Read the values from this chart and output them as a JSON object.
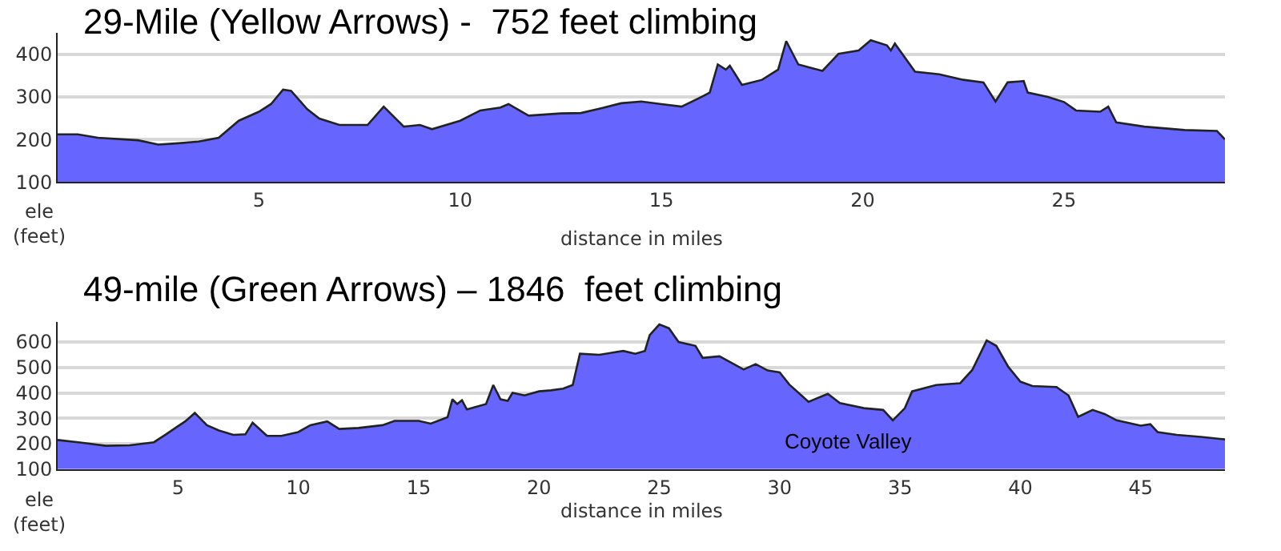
{
  "chart_data": [
    {
      "type": "area",
      "title": "29-Mile (Yellow Arrows) -  752 feet climbing",
      "xlabel": "distance in miles",
      "ylabel": "ele\n(feet)",
      "x": [
        0,
        0.5,
        1,
        2,
        2.5,
        3,
        3.5,
        4,
        4.5,
        5,
        5.3,
        5.6,
        5.8,
        6.2,
        6.5,
        7,
        7.7,
        8.1,
        8.6,
        9,
        9.3,
        10,
        10.5,
        11,
        11.2,
        11.7,
        12.5,
        13,
        13.5,
        14,
        14.5,
        15,
        15.5,
        16,
        16.2,
        16.4,
        16.6,
        16.7,
        17,
        17.5,
        17.9,
        18.1,
        18.4,
        19,
        19.4,
        19.9,
        20.2,
        20.6,
        20.7,
        20.8,
        21.3,
        21.9,
        22.5,
        23,
        23.3,
        23.6,
        24,
        24.1,
        24.6,
        25,
        25.3,
        25.9,
        26.1,
        26.3,
        27,
        28,
        28.8,
        29
      ],
      "series": [
        {
          "color": "#6666ff",
          "values": [
            212,
            212,
            204,
            198,
            188,
            191,
            195,
            204,
            244,
            265,
            283,
            317,
            314,
            271,
            249,
            234,
            234,
            277,
            230,
            234,
            224,
            244,
            268,
            275,
            283,
            256,
            261,
            262,
            273,
            285,
            289,
            283,
            277,
            300,
            310,
            376,
            364,
            373,
            328,
            340,
            364,
            431,
            376,
            361,
            401,
            409,
            433,
            421,
            409,
            425,
            359,
            353,
            340,
            334,
            289,
            334,
            337,
            310,
            300,
            288,
            268,
            265,
            277,
            240,
            230,
            222,
            220,
            200
          ]
        }
      ],
      "xlim": [
        0,
        29
      ],
      "ylim": [
        100,
        450
      ],
      "xticks": [
        5,
        10,
        15,
        20,
        25
      ],
      "yticks": [
        100,
        200,
        300,
        400
      ],
      "grid": "y"
    },
    {
      "type": "area",
      "title": "49-mile (Green Arrows) – 1846  feet climbing",
      "xlabel": "distance in miles",
      "ylabel": "ele\n(feet)",
      "x": [
        0,
        1,
        2,
        3,
        4,
        4.5,
        5,
        5.3,
        5.7,
        6.2,
        6.7,
        7.3,
        7.8,
        8.1,
        8.7,
        9.3,
        10,
        10.5,
        11.2,
        11.7,
        12.5,
        13.5,
        14,
        15,
        15.5,
        16.2,
        16.4,
        16.6,
        16.8,
        17,
        17.8,
        18.1,
        18.4,
        18.7,
        18.9,
        19.4,
        20,
        20.5,
        21,
        21.4,
        21.7,
        22.5,
        23.5,
        24,
        24.4,
        24.6,
        25,
        25.4,
        25.8,
        26.5,
        26.8,
        27.5,
        28.5,
        29,
        29.5,
        30,
        30.4,
        31.2,
        32,
        32.5,
        33.5,
        34.3,
        34.7,
        35.2,
        35.5,
        36.5,
        37.5,
        38,
        38.6,
        39,
        39.5,
        40,
        40.5,
        41.5,
        42,
        42.4,
        43,
        43.5,
        44,
        45,
        45.4,
        45.7,
        46.5,
        47.5,
        48.5
      ],
      "series": [
        {
          "color": "#6666ff",
          "values": [
            215,
            204,
            192,
            194,
            206,
            237,
            269,
            288,
            321,
            273,
            252,
            235,
            237,
            283,
            231,
            231,
            246,
            273,
            288,
            258,
            262,
            273,
            290,
            290,
            279,
            304,
            375,
            356,
            371,
            335,
            356,
            431,
            375,
            369,
            400,
            390,
            406,
            410,
            417,
            431,
            554,
            550,
            565,
            554,
            565,
            627,
            669,
            654,
            600,
            585,
            538,
            544,
            492,
            513,
            488,
            481,
            433,
            365,
            396,
            360,
            340,
            333,
            292,
            340,
            406,
            431,
            438,
            490,
            606,
            585,
            502,
            444,
            427,
            423,
            390,
            306,
            333,
            317,
            292,
            271,
            277,
            246,
            235,
            227,
            217
          ]
        }
      ],
      "annotations": [
        "Coyote Valley"
      ],
      "xlim": [
        0,
        48.5
      ],
      "ylim": [
        100,
        680
      ],
      "xticks": [
        5,
        10,
        15,
        20,
        25,
        30,
        35,
        40,
        45
      ],
      "yticks": [
        100,
        200,
        300,
        400,
        500,
        600
      ],
      "grid": "y"
    }
  ]
}
